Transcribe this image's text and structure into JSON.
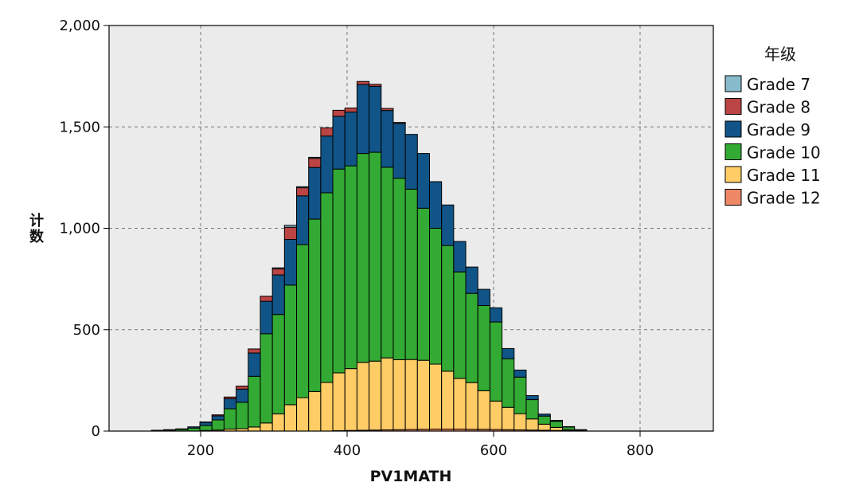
{
  "chart_data": {
    "type": "bar",
    "stacked": true,
    "xlabel": "PV1MATH",
    "ylabel": "计数",
    "xlim": [
      75,
      900
    ],
    "ylim": [
      0,
      2000
    ],
    "x_ticks": [
      200,
      400,
      600,
      800
    ],
    "y_ticks": [
      0,
      500,
      1000,
      1500,
      2000
    ],
    "x_tick_labels": [
      "200",
      "400",
      "600",
      "800"
    ],
    "y_tick_labels": [
      "0",
      "500",
      "1,000",
      "1,500",
      "2,000"
    ],
    "grid": true,
    "legend": {
      "title": "年级",
      "placement": "right"
    },
    "bin_width": 16.5,
    "bin_starts": [
      133,
      149.5,
      166,
      182.5,
      199,
      215.5,
      232,
      248.5,
      265,
      281.5,
      298,
      314.5,
      331,
      347.5,
      364,
      380.5,
      397,
      413.5,
      430,
      446.5,
      463,
      479.5,
      496,
      512.5,
      529,
      545.5,
      562,
      578.5,
      595,
      611.5,
      628,
      644.5,
      661,
      677.5,
      694,
      710.5
    ],
    "series": [
      {
        "name": "Grade 12",
        "color": "#ee8866",
        "values": [
          0,
          0,
          0,
          0,
          0,
          0,
          0,
          0,
          0,
          0,
          0,
          0,
          0,
          0,
          0,
          2,
          3,
          4,
          5,
          6,
          7,
          8,
          9,
          10,
          10,
          10,
          9,
          9,
          8,
          7,
          6,
          5,
          4,
          3,
          2,
          1
        ]
      },
      {
        "name": "Grade 11",
        "color": "#ffcc66",
        "values": [
          0,
          0,
          0,
          0,
          3,
          5,
          10,
          12,
          20,
          40,
          85,
          130,
          165,
          195,
          240,
          285,
          305,
          335,
          340,
          355,
          345,
          345,
          340,
          320,
          285,
          250,
          230,
          190,
          140,
          110,
          80,
          55,
          30,
          15,
          5,
          2
        ]
      },
      {
        "name": "Grade 10",
        "color": "#33aa33",
        "values": [
          3,
          5,
          8,
          15,
          25,
          50,
          100,
          130,
          250,
          440,
          490,
          590,
          755,
          850,
          935,
          1005,
          1000,
          1030,
          1030,
          940,
          895,
          840,
          750,
          670,
          620,
          525,
          440,
          420,
          390,
          240,
          180,
          95,
          40,
          30,
          13,
          3
        ]
      },
      {
        "name": "Grade 9",
        "color": "#115588",
        "values": [
          1,
          2,
          3,
          6,
          15,
          20,
          50,
          65,
          115,
          160,
          195,
          225,
          240,
          255,
          280,
          260,
          265,
          340,
          325,
          280,
          270,
          270,
          270,
          230,
          200,
          150,
          130,
          80,
          70,
          50,
          35,
          20,
          10,
          5,
          2,
          1
        ]
      },
      {
        "name": "Grade 8",
        "color": "#bb4444",
        "values": [
          0,
          0,
          0,
          0,
          2,
          5,
          8,
          15,
          20,
          25,
          30,
          60,
          40,
          45,
          40,
          30,
          20,
          15,
          10,
          10,
          5,
          0,
          0,
          0,
          0,
          0,
          0,
          0,
          0,
          0,
          0,
          0,
          0,
          0,
          0,
          0
        ]
      },
      {
        "name": "Grade 7",
        "color": "#88bbcc",
        "values": [
          0,
          0,
          0,
          0,
          0,
          0,
          0,
          0,
          0,
          0,
          5,
          10,
          5,
          5,
          0,
          0,
          0,
          0,
          0,
          0,
          0,
          0,
          0,
          0,
          0,
          0,
          0,
          0,
          0,
          0,
          0,
          0,
          0,
          0,
          0,
          0
        ]
      }
    ],
    "legend_order": [
      "Grade 7",
      "Grade 8",
      "Grade 9",
      "Grade 10",
      "Grade 11",
      "Grade 12"
    ]
  }
}
